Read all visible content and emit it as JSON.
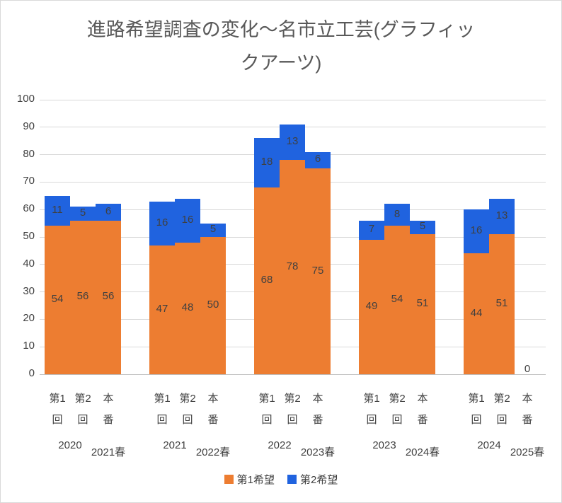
{
  "title": {
    "full": "進路希望調査の変化～名市立工芸(グラフィックアーツ)",
    "lines": [
      "進路希望調査の変化～名市立工芸(グラフィッ",
      "クアーツ)"
    ]
  },
  "legend": {
    "items": [
      {
        "label": "第1希望",
        "color": "#ED7D31"
      },
      {
        "label": "第2希望",
        "color": "#2063DF"
      }
    ]
  },
  "chart_data": {
    "type": "bar",
    "stacked": true,
    "title": "進路希望調査の変化～名市立工芸(グラフィックアーツ)",
    "xlabel": "",
    "ylabel": "",
    "ylim": [
      0,
      100
    ],
    "yticks": [
      0,
      10,
      20,
      30,
      40,
      50,
      60,
      70,
      80,
      90,
      100
    ],
    "grid": true,
    "legend_position": "bottom",
    "series_names": [
      "第1希望",
      "第2希望"
    ],
    "series_colors": [
      "#ED7D31",
      "#2063DF"
    ],
    "groups": [
      {
        "year": "2020",
        "spring": "2021春",
        "bars": [
          {
            "label": [
              "第1",
              "回"
            ],
            "s1": 54,
            "s2": 11
          },
          {
            "label": [
              "第2",
              "回"
            ],
            "s1": 56,
            "s2": 5
          },
          {
            "label": [
              "本",
              "番"
            ],
            "s1": 56,
            "s2": 6
          }
        ]
      },
      {
        "year": "2021",
        "spring": "2022春",
        "bars": [
          {
            "label": [
              "第1",
              "回"
            ],
            "s1": 47,
            "s2": 16
          },
          {
            "label": [
              "第2",
              "回"
            ],
            "s1": 48,
            "s2": 16
          },
          {
            "label": [
              "本",
              "番"
            ],
            "s1": 50,
            "s2": 5
          }
        ]
      },
      {
        "year": "2022",
        "spring": "2023春",
        "bars": [
          {
            "label": [
              "第1",
              "回"
            ],
            "s1": 68,
            "s2": 18
          },
          {
            "label": [
              "第2",
              "回"
            ],
            "s1": 78,
            "s2": 13
          },
          {
            "label": [
              "本",
              "番"
            ],
            "s1": 75,
            "s2": 6
          }
        ]
      },
      {
        "year": "2023",
        "spring": "2024春",
        "bars": [
          {
            "label": [
              "第1",
              "回"
            ],
            "s1": 49,
            "s2": 7
          },
          {
            "label": [
              "第2",
              "回"
            ],
            "s1": 54,
            "s2": 8
          },
          {
            "label": [
              "本",
              "番"
            ],
            "s1": 51,
            "s2": 5
          }
        ]
      },
      {
        "year": "2024",
        "spring": "2025春",
        "bars": [
          {
            "label": [
              "第1",
              "回"
            ],
            "s1": 44,
            "s2": 16
          },
          {
            "label": [
              "第2",
              "回"
            ],
            "s1": 51,
            "s2": 13
          },
          {
            "label": [
              "本",
              "番"
            ],
            "s1": 0,
            "s2": 0
          }
        ]
      }
    ]
  }
}
